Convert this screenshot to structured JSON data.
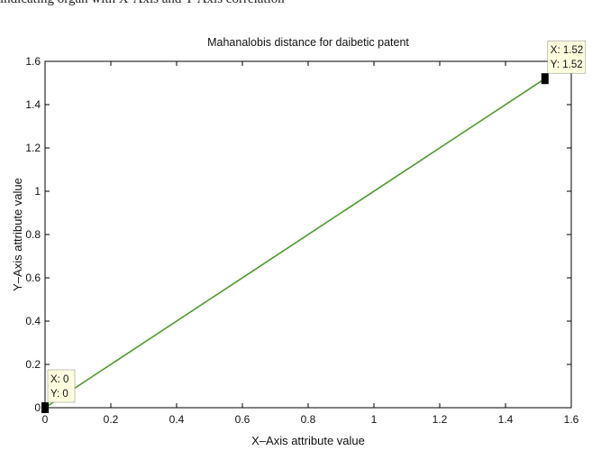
{
  "caption_fragment": "indicating organ with X-Axis and Y-Axis correlation",
  "colors": {
    "line": "#4f9a2f",
    "tip_background": "#ffffe0",
    "marker": "#000000"
  },
  "chart_data": {
    "type": "line",
    "title": "Mahanalobis distance for daibetic patent",
    "xlabel": "X–Axis attribute value",
    "ylabel": "Y–Axis attribute value",
    "xlim": [
      0,
      1.6
    ],
    "ylim": [
      0,
      1.6
    ],
    "xticks": [
      "0",
      "0.2",
      "0.4",
      "0.6",
      "0.8",
      "1",
      "1.2",
      "1.4",
      "1.6"
    ],
    "yticks": [
      "0",
      "0.2",
      "0.4",
      "0.6",
      "0.8",
      "1",
      "1.2",
      "1.4",
      "1.6"
    ],
    "grid": false,
    "series": [
      {
        "x": [
          0,
          1.52
        ],
        "y": [
          0,
          1.52
        ]
      }
    ],
    "datatips": [
      {
        "x_text": "X: 0",
        "y_text": "Y: 0",
        "x": 0,
        "y": 0
      },
      {
        "x_text": "X: 1.52",
        "y_text": "Y: 1.52",
        "x": 1.52,
        "y": 1.52
      }
    ]
  }
}
